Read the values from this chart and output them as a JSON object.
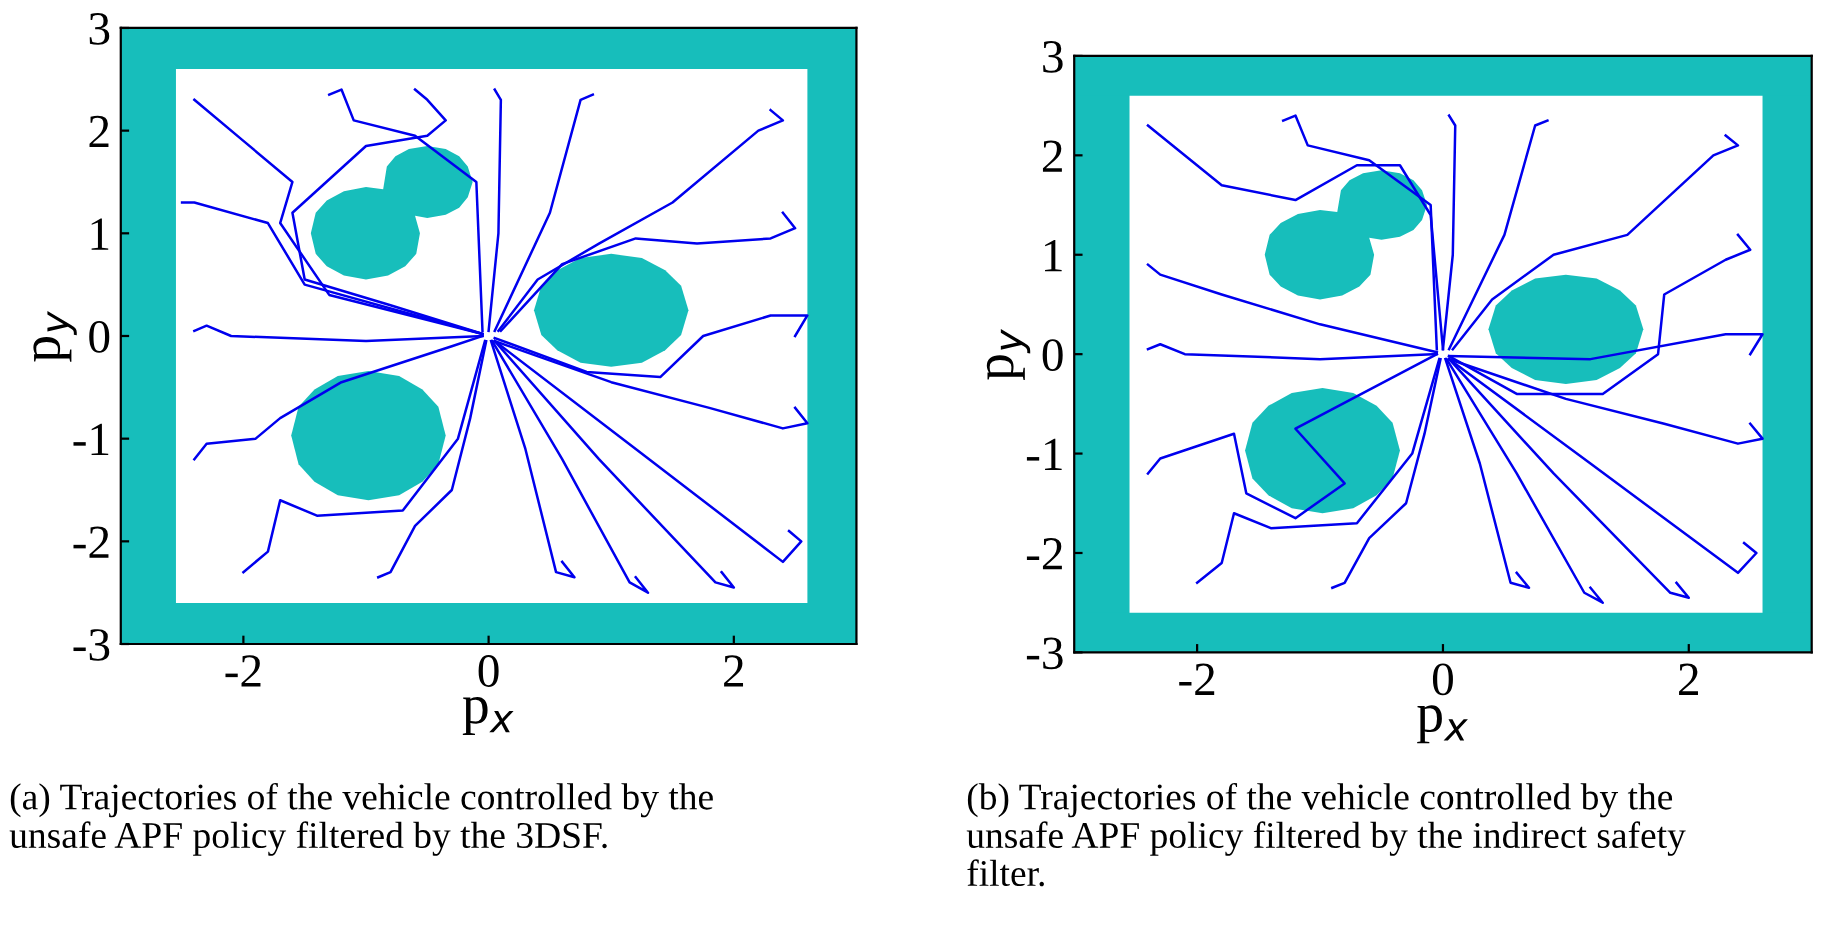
{
  "chart_data": [
    {
      "type": "line",
      "xlabel": "p$_{x}$",
      "ylabel": "p$_{y}$",
      "xlim": [
        -3,
        3
      ],
      "ylim": [
        -3,
        3
      ],
      "xticks": [
        -2,
        0,
        2
      ],
      "yticks": [
        -3,
        -2,
        -1,
        0,
        1,
        2,
        3
      ],
      "grid": false,
      "line_style": "solid",
      "annotations": [
        "(a) Trajectories of the vehicle controlled by the\nunsafe APF policy filtered by the 3DSF."
      ],
      "bands": [
        {
          "axis": "x",
          "from": -3,
          "to": -2.55,
          "color": "#17bebb"
        },
        {
          "axis": "x",
          "from": 2.6,
          "to": 3,
          "color": "#17bebb"
        },
        {
          "axis": "y",
          "from": -3,
          "to": -2.6,
          "color": "#17bebb"
        },
        {
          "axis": "y",
          "from": 2.6,
          "to": 3,
          "color": "#17bebb"
        }
      ],
      "series": [
        {
          "type": "area",
          "color": "#17bebb",
          "x": [
            0.37,
            0.43,
            0.56,
            0.75,
            1.0,
            1.25,
            1.44,
            1.57,
            1.63,
            1.57,
            1.44,
            1.25,
            1.0,
            0.75,
            0.56,
            0.43
          ],
          "values": [
            0.25,
            0.49,
            0.64,
            0.76,
            0.8,
            0.76,
            0.64,
            0.49,
            0.25,
            0.01,
            -0.14,
            -0.26,
            -0.3,
            -0.26,
            -0.14,
            0.01
          ]
        },
        {
          "type": "area",
          "color": "#17bebb",
          "x": [
            -1.61,
            -1.55,
            -1.42,
            -1.23,
            -0.98,
            -0.73,
            -0.54,
            -0.41,
            -0.35,
            -0.41,
            -0.54,
            -0.73,
            -0.98,
            -1.23,
            -1.42,
            -1.55
          ],
          "values": [
            -0.97,
            -0.69,
            -0.52,
            -0.39,
            -0.34,
            -0.39,
            -0.52,
            -0.69,
            -0.97,
            -1.25,
            -1.42,
            -1.55,
            -1.6,
            -1.55,
            -1.42,
            -1.25
          ]
        },
        {
          "type": "area",
          "color": "#17bebb",
          "x": [
            -1.45,
            -1.41,
            -1.32,
            -1.18,
            -1.0,
            -0.86,
            -0.83,
            -0.76,
            -0.65,
            -0.5,
            -0.35,
            -0.24,
            -0.17,
            -0.13,
            -0.17,
            -0.24,
            -0.35,
            -0.5,
            -0.6,
            -0.56,
            -0.59,
            -0.68,
            -0.82,
            -1.0,
            -1.18,
            -1.32,
            -1.41
          ],
          "values": [
            1.0,
            1.2,
            1.32,
            1.41,
            1.45,
            1.43,
            1.65,
            1.75,
            1.82,
            1.85,
            1.82,
            1.75,
            1.65,
            1.5,
            1.35,
            1.25,
            1.18,
            1.15,
            1.17,
            1.0,
            0.8,
            0.68,
            0.59,
            0.55,
            0.59,
            0.68,
            0.8
          ]
        },
        {
          "color": "#0000ee",
          "x": [
            2.45,
            2.55,
            2.4,
            1.2,
            0.05
          ],
          "values": [
            -1.9,
            -2.0,
            -2.2,
            -1.1,
            -0.05
          ]
        },
        {
          "color": "#0000ee",
          "x": [
            1.9,
            2.0,
            1.85,
            0.9,
            0.05
          ],
          "values": [
            -2.3,
            -2.45,
            -2.4,
            -1.2,
            -0.05
          ]
        },
        {
          "color": "#0000ee",
          "x": [
            1.2,
            1.3,
            1.15,
            0.6,
            0.03
          ],
          "values": [
            -2.35,
            -2.5,
            -2.4,
            -1.2,
            -0.05
          ]
        },
        {
          "color": "#0000ee",
          "x": [
            0.6,
            0.7,
            0.55,
            0.3,
            0.02
          ],
          "values": [
            -2.2,
            -2.35,
            -2.3,
            -1.1,
            -0.05
          ]
        },
        {
          "color": "#0000ee",
          "x": [
            2.5,
            2.6,
            2.4,
            1.8,
            1.0,
            0.05
          ],
          "values": [
            -0.7,
            -0.85,
            -0.9,
            -0.7,
            -0.45,
            -0.05
          ]
        },
        {
          "color": "#0000ee",
          "x": [
            2.4,
            2.5,
            2.3,
            1.7,
            1.2,
            0.6,
            0.1
          ],
          "values": [
            1.2,
            1.05,
            0.95,
            0.9,
            0.95,
            0.7,
            0.05
          ]
        },
        {
          "color": "#0000ee",
          "x": [
            2.3,
            2.4,
            2.2,
            1.5,
            0.9,
            0.4,
            0.08
          ],
          "values": [
            2.2,
            2.1,
            2.0,
            1.3,
            0.9,
            0.55,
            0.05
          ]
        },
        {
          "color": "#0000ee",
          "x": [
            2.5,
            2.6,
            2.3,
            1.75,
            1.4,
            0.8,
            0.05
          ],
          "values": [
            0.0,
            0.2,
            0.2,
            0.0,
            -0.4,
            -0.35,
            -0.02
          ]
        },
        {
          "color": "#0000ee",
          "x": [
            0.05,
            0.1,
            0.08,
            0.0
          ],
          "values": [
            2.4,
            2.3,
            1.0,
            0.05
          ]
        },
        {
          "color": "#0000ee",
          "x": [
            0.85,
            0.75,
            0.5,
            0.05
          ],
          "values": [
            2.35,
            2.3,
            1.2,
            0.05
          ]
        },
        {
          "color": "#0000ee",
          "x": [
            -0.6,
            -0.5,
            -0.35,
            -0.5,
            -1.0,
            -1.6,
            -1.5,
            -0.8,
            -0.05
          ],
          "values": [
            2.4,
            2.3,
            2.1,
            1.95,
            1.85,
            1.2,
            0.55,
            0.3,
            0.02
          ]
        },
        {
          "color": "#0000ee",
          "x": [
            -2.4,
            -2.0,
            -1.6,
            -1.7,
            -1.3,
            -0.05
          ],
          "values": [
            2.3,
            1.9,
            1.5,
            1.1,
            0.4,
            0.02
          ]
        },
        {
          "color": "#0000ee",
          "x": [
            -2.4,
            -2.3,
            -2.1,
            -1.0,
            -0.05
          ],
          "values": [
            0.05,
            0.1,
            0.0,
            -0.05,
            0.0
          ]
        },
        {
          "color": "#0000ee",
          "x": [
            -2.4,
            -2.3,
            -1.9,
            -1.7,
            -1.2,
            -0.3,
            -0.05
          ],
          "values": [
            -1.2,
            -1.05,
            -1.0,
            -0.8,
            -0.45,
            -0.1,
            0.0
          ]
        },
        {
          "color": "#0000ee",
          "x": [
            -2.0,
            -1.8,
            -1.7,
            -1.4,
            -0.7,
            -0.25,
            -0.03
          ],
          "values": [
            -2.3,
            -2.1,
            -1.6,
            -1.75,
            -1.7,
            -1.0,
            -0.05
          ]
        },
        {
          "color": "#0000ee",
          "x": [
            -0.9,
            -0.8,
            -0.6,
            -0.3,
            -0.15,
            -0.02
          ],
          "values": [
            -2.35,
            -2.3,
            -1.85,
            -1.5,
            -0.8,
            -0.05
          ]
        },
        {
          "color": "#0000ee",
          "x": [
            -2.5,
            -2.4,
            -1.8,
            -1.5,
            -0.05
          ],
          "values": [
            1.3,
            1.3,
            1.1,
            0.5,
            0.02
          ]
        },
        {
          "color": "#0000ee",
          "x": [
            -1.3,
            -1.2,
            -1.1,
            -0.6,
            -0.1,
            -0.05
          ],
          "values": [
            2.35,
            2.4,
            2.1,
            1.95,
            1.5,
            0.05
          ]
        }
      ]
    },
    {
      "type": "line",
      "xlabel": "p$_{x}$",
      "ylabel": "p$_{y}$",
      "xlim": [
        -3,
        3
      ],
      "ylim": [
        -3,
        3
      ],
      "xticks": [
        -2,
        0,
        2
      ],
      "yticks": [
        -3,
        -2,
        -1,
        0,
        1,
        2,
        3
      ],
      "grid": false,
      "line_style": "solid",
      "annotations": [
        "(b) Trajectories of the vehicle controlled by the\nunsafe APF policy filtered by the indirect safety\nfilter."
      ],
      "bands": [
        {
          "axis": "x",
          "from": -3,
          "to": -2.55,
          "color": "#17bebb"
        },
        {
          "axis": "x",
          "from": 2.6,
          "to": 3,
          "color": "#17bebb"
        },
        {
          "axis": "y",
          "from": -3,
          "to": -2.6,
          "color": "#17bebb"
        },
        {
          "axis": "y",
          "from": 2.6,
          "to": 3,
          "color": "#17bebb"
        }
      ],
      "series": [
        {
          "type": "area",
          "color": "#17bebb",
          "x": [
            0.37,
            0.43,
            0.56,
            0.75,
            1.0,
            1.25,
            1.44,
            1.57,
            1.63,
            1.57,
            1.44,
            1.25,
            1.0,
            0.75,
            0.56,
            0.43
          ],
          "values": [
            0.25,
            0.49,
            0.64,
            0.76,
            0.8,
            0.76,
            0.64,
            0.49,
            0.25,
            0.01,
            -0.14,
            -0.26,
            -0.3,
            -0.26,
            -0.14,
            0.01
          ]
        },
        {
          "type": "area",
          "color": "#17bebb",
          "x": [
            -1.61,
            -1.55,
            -1.42,
            -1.23,
            -0.98,
            -0.73,
            -0.54,
            -0.41,
            -0.35,
            -0.41,
            -0.54,
            -0.73,
            -0.98,
            -1.23,
            -1.42,
            -1.55
          ],
          "values": [
            -0.97,
            -0.69,
            -0.52,
            -0.39,
            -0.34,
            -0.39,
            -0.52,
            -0.69,
            -0.97,
            -1.25,
            -1.42,
            -1.55,
            -1.6,
            -1.55,
            -1.42,
            -1.25
          ]
        },
        {
          "type": "area",
          "color": "#17bebb",
          "x": [
            -1.45,
            -1.41,
            -1.32,
            -1.18,
            -1.0,
            -0.86,
            -0.83,
            -0.76,
            -0.65,
            -0.5,
            -0.35,
            -0.24,
            -0.17,
            -0.13,
            -0.17,
            -0.24,
            -0.35,
            -0.5,
            -0.6,
            -0.56,
            -0.59,
            -0.68,
            -0.82,
            -1.0,
            -1.18,
            -1.32,
            -1.41
          ],
          "values": [
            1.0,
            1.2,
            1.32,
            1.41,
            1.45,
            1.43,
            1.65,
            1.75,
            1.82,
            1.85,
            1.82,
            1.75,
            1.65,
            1.5,
            1.35,
            1.25,
            1.18,
            1.15,
            1.17,
            1.0,
            0.8,
            0.68,
            0.59,
            0.55,
            0.59,
            0.68,
            0.8
          ]
        },
        {
          "color": "#0000ee",
          "x": [
            2.45,
            2.55,
            2.4,
            1.2,
            0.05
          ],
          "values": [
            -1.9,
            -2.0,
            -2.2,
            -1.1,
            -0.05
          ]
        },
        {
          "color": "#0000ee",
          "x": [
            1.9,
            2.0,
            1.85,
            0.9,
            0.05
          ],
          "values": [
            -2.3,
            -2.45,
            -2.4,
            -1.2,
            -0.05
          ]
        },
        {
          "color": "#0000ee",
          "x": [
            1.2,
            1.3,
            1.15,
            0.6,
            0.03
          ],
          "values": [
            -2.35,
            -2.5,
            -2.4,
            -1.2,
            -0.05
          ]
        },
        {
          "color": "#0000ee",
          "x": [
            0.6,
            0.7,
            0.55,
            0.3,
            0.02
          ],
          "values": [
            -2.2,
            -2.35,
            -2.3,
            -1.1,
            -0.05
          ]
        },
        {
          "color": "#0000ee",
          "x": [
            2.5,
            2.6,
            2.4,
            1.8,
            1.0,
            0.05
          ],
          "values": [
            -0.7,
            -0.85,
            -0.9,
            -0.7,
            -0.45,
            -0.05
          ]
        },
        {
          "color": "#0000ee",
          "x": [
            2.4,
            2.5,
            2.3,
            1.8,
            1.75,
            1.3,
            0.6,
            0.05
          ],
          "values": [
            1.2,
            1.05,
            0.95,
            0.6,
            0.0,
            -0.4,
            -0.4,
            -0.02
          ]
        },
        {
          "color": "#0000ee",
          "x": [
            2.3,
            2.4,
            2.2,
            1.5,
            0.9,
            0.4,
            0.08
          ],
          "values": [
            2.2,
            2.1,
            2.0,
            1.2,
            1.0,
            0.55,
            0.05
          ]
        },
        {
          "color": "#0000ee",
          "x": [
            2.5,
            2.6,
            2.3,
            1.2,
            0.05
          ],
          "values": [
            0.0,
            0.2,
            0.2,
            -0.05,
            -0.02
          ]
        },
        {
          "color": "#0000ee",
          "x": [
            0.05,
            0.1,
            0.08,
            0.0
          ],
          "values": [
            2.4,
            2.3,
            1.0,
            0.05
          ]
        },
        {
          "color": "#0000ee",
          "x": [
            0.85,
            0.75,
            0.5,
            0.05
          ],
          "values": [
            2.35,
            2.3,
            1.2,
            0.05
          ]
        },
        {
          "color": "#0000ee",
          "x": [
            -2.4,
            -2.3,
            -1.8,
            -1.2,
            -0.7,
            -0.35,
            -0.1,
            0.0
          ],
          "values": [
            2.3,
            2.2,
            1.7,
            1.55,
            1.9,
            1.9,
            1.4,
            0.05
          ]
        },
        {
          "color": "#0000ee",
          "x": [
            -2.4,
            -2.3,
            -2.1,
            -1.0,
            -0.05
          ],
          "values": [
            0.05,
            0.1,
            0.0,
            -0.05,
            0.0
          ]
        },
        {
          "color": "#0000ee",
          "x": [
            -2.4,
            -2.3,
            -1.7,
            -1.6,
            -1.2,
            -0.8,
            -1.2,
            -0.05
          ],
          "values": [
            -1.2,
            -1.05,
            -0.8,
            -1.4,
            -1.65,
            -1.3,
            -0.75,
            0.0
          ]
        },
        {
          "color": "#0000ee",
          "x": [
            -2.0,
            -1.8,
            -1.7,
            -1.4,
            -0.7,
            -0.25,
            -0.03
          ],
          "values": [
            -2.3,
            -2.1,
            -1.6,
            -1.75,
            -1.7,
            -1.0,
            -0.05
          ]
        },
        {
          "color": "#0000ee",
          "x": [
            -0.9,
            -0.8,
            -0.6,
            -0.3,
            -0.15,
            -0.02
          ],
          "values": [
            -2.35,
            -2.3,
            -1.85,
            -1.5,
            -0.8,
            -0.05
          ]
        },
        {
          "color": "#0000ee",
          "x": [
            -2.4,
            -2.3,
            -1.8,
            -1.0,
            -0.05
          ],
          "values": [
            0.9,
            0.8,
            0.6,
            0.3,
            0.02
          ]
        },
        {
          "color": "#0000ee",
          "x": [
            -1.3,
            -1.2,
            -1.1,
            -0.6,
            -0.1,
            -0.05
          ],
          "values": [
            2.35,
            2.4,
            2.1,
            1.95,
            1.5,
            0.05
          ]
        }
      ]
    }
  ]
}
